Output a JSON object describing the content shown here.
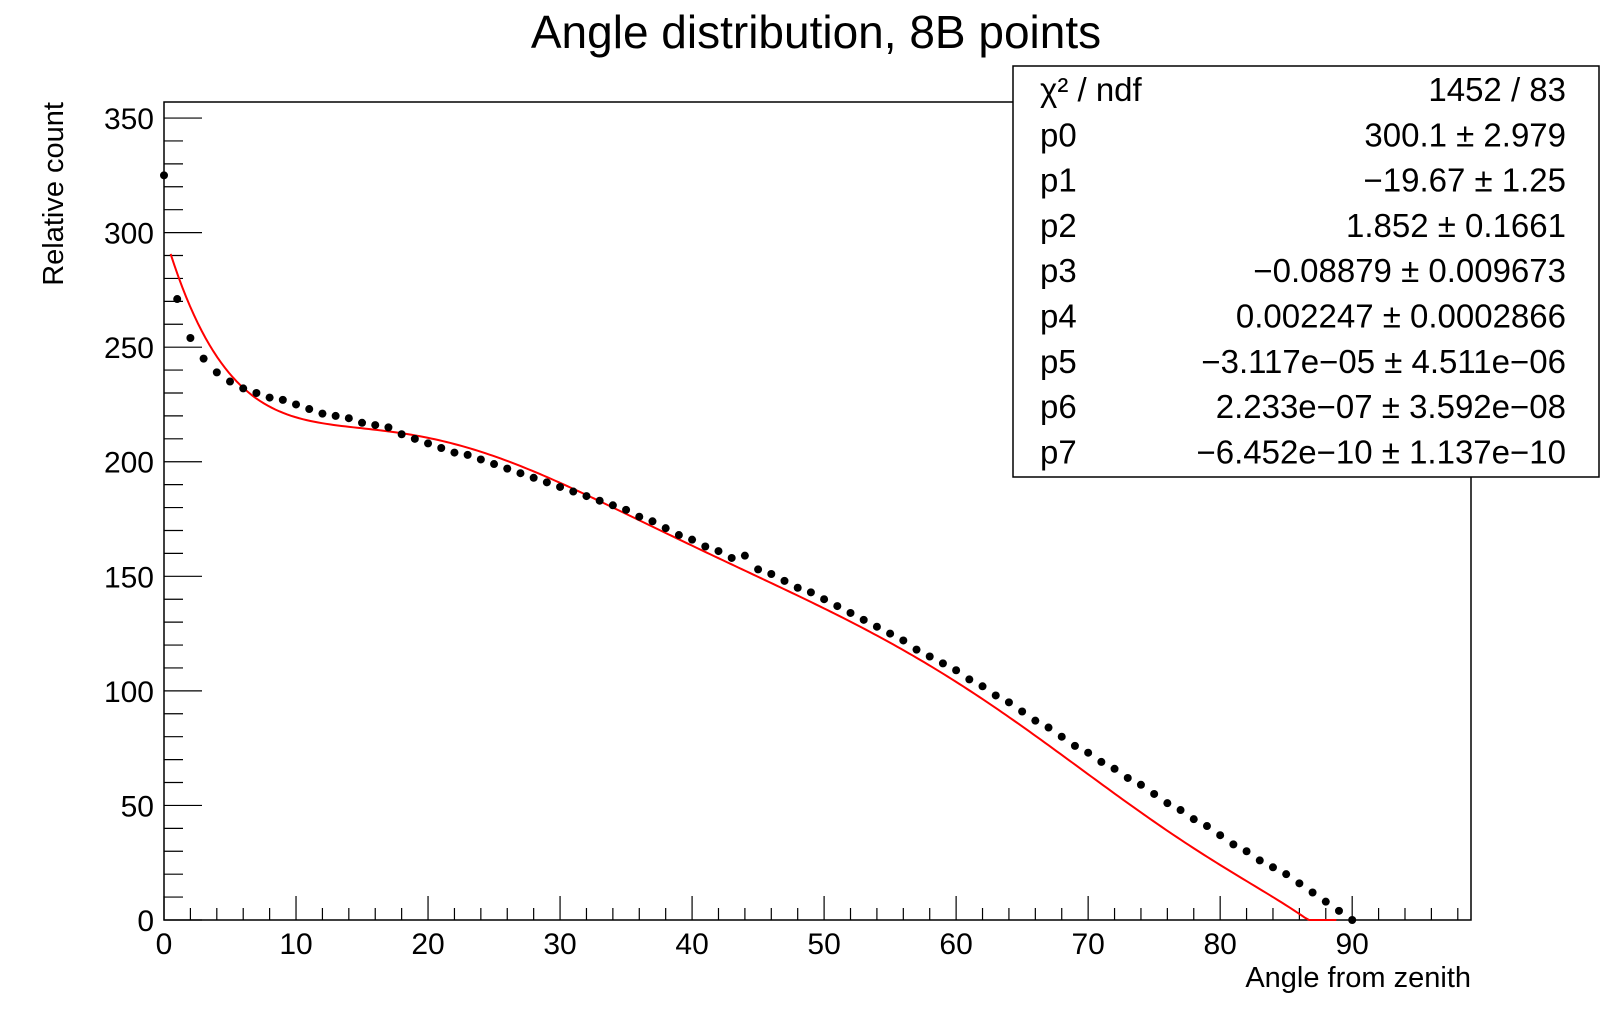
{
  "chart_data": {
    "type": "scatter",
    "title": "Angle distribution, 8B points",
    "xlabel": "Angle from zenith",
    "ylabel": "Relative count",
    "xlim": [
      0,
      99
    ],
    "ylim": [
      0,
      357
    ],
    "x_ticks": [
      "0",
      "10",
      "20",
      "30",
      "40",
      "50",
      "60",
      "70",
      "80",
      "90"
    ],
    "y_ticks": [
      "0",
      "50",
      "100",
      "150",
      "200",
      "250",
      "300",
      "350"
    ],
    "grid": false,
    "legend": "stats box top-right",
    "series": [
      {
        "x": [
          0,
          1,
          2,
          3,
          4,
          5,
          6,
          7,
          8,
          9,
          10,
          11,
          12,
          13,
          14,
          15,
          16,
          17,
          18,
          19,
          20,
          21,
          22,
          23,
          24,
          25,
          26,
          27,
          28,
          29,
          30,
          31,
          32,
          33,
          34,
          35,
          36,
          37,
          38,
          39,
          40,
          41,
          42,
          43,
          44,
          45,
          46,
          47,
          48,
          49,
          50,
          51,
          52,
          53,
          54,
          55,
          56,
          57,
          58,
          59,
          60,
          61,
          62,
          63,
          64,
          65,
          66,
          67,
          68,
          69,
          70,
          71,
          72,
          73,
          74,
          75,
          76,
          77,
          78,
          79,
          80,
          81,
          82,
          83,
          84,
          85,
          86,
          87,
          88,
          89,
          90
        ],
        "values": [
          325,
          271,
          254,
          245,
          239,
          235,
          232,
          230,
          228,
          227,
          225,
          223,
          221,
          220,
          219,
          217,
          216,
          215,
          212,
          210,
          208,
          206,
          204,
          203,
          201,
          199,
          197,
          195,
          193,
          191,
          189,
          187,
          185,
          183,
          181,
          179,
          176,
          174,
          171,
          168,
          166,
          163,
          161,
          158,
          159,
          153,
          151,
          148,
          145,
          143,
          140,
          137,
          134,
          131,
          128,
          125,
          122,
          118,
          115,
          112,
          109,
          105,
          102,
          98,
          95,
          91,
          87,
          84,
          80,
          76,
          73,
          69,
          66,
          62,
          59,
          55,
          51,
          48,
          44,
          41,
          37,
          33,
          30,
          26,
          23,
          20,
          16,
          12,
          8,
          4,
          0
        ]
      }
    ],
    "fit_params": [
      300.1,
      -19.67,
      1.852,
      -0.08879,
      0.002247,
      -3.117e-05,
      2.233e-07,
      -6.452e-10
    ],
    "fit_xrange": [
      0.5,
      88.8
    ],
    "fit_color": "#ff0000",
    "marker_color": "#000000"
  },
  "stats": [
    {
      "label": "χ² / ndf",
      "value": "1452 / 83"
    },
    {
      "label": "p0",
      "value": "300.1 ± 2.979"
    },
    {
      "label": "p1",
      "value": "−19.67 ±  1.25"
    },
    {
      "label": "p2",
      "value": "1.852 ± 0.1661"
    },
    {
      "label": "p3",
      "value": "−0.08879 ± 0.009673"
    },
    {
      "label": "p4",
      "value": "0.002247 ± 0.0002866"
    },
    {
      "label": "p5",
      "value": "−3.117e−05 ± 4.511e−06"
    },
    {
      "label": "p6",
      "value": "2.233e−07 ± 3.592e−08"
    },
    {
      "label": "p7",
      "value": "−6.452e−10 ± 1.137e−10"
    }
  ]
}
